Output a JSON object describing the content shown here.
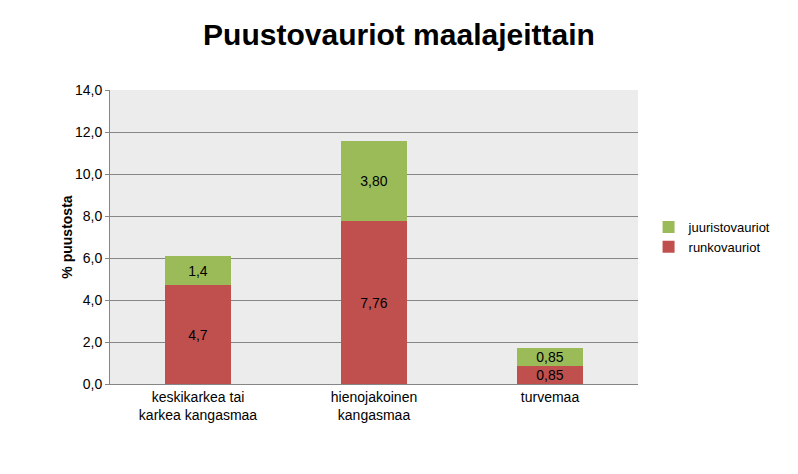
{
  "chart_data": {
    "type": "bar",
    "title": "Puustovauriot maalajeittain",
    "y_label": "% puustosta",
    "categories": [
      "keskikarkea tai karkea kangasmaa",
      "hienojakoinen kangasmaa",
      "turvemaa"
    ],
    "series": [
      {
        "name": "runkovauriot",
        "color": "#c0504d",
        "values": [
          4.7,
          7.76,
          0.85
        ],
        "value_labels": [
          "4,7",
          "7,76",
          "0,85"
        ]
      },
      {
        "name": "juuristovauriot",
        "color": "#9bbb59",
        "values": [
          1.4,
          3.8,
          0.85
        ],
        "value_labels": [
          "1,4",
          "3,80",
          "0,85"
        ]
      }
    ],
    "stacked": true,
    "data_labels": true,
    "legend": "right",
    "grid": true,
    "ylim": [
      0,
      14
    ],
    "yticks": [
      {
        "value": 0,
        "label": "0,0"
      },
      {
        "value": 2,
        "label": "2,0"
      },
      {
        "value": 4,
        "label": "4,0"
      },
      {
        "value": 6,
        "label": "6,0"
      },
      {
        "value": 8,
        "label": "8,0"
      },
      {
        "value": 10,
        "label": "10,0"
      },
      {
        "value": 12,
        "label": "12,0"
      },
      {
        "value": 14,
        "label": "14,0"
      }
    ]
  }
}
